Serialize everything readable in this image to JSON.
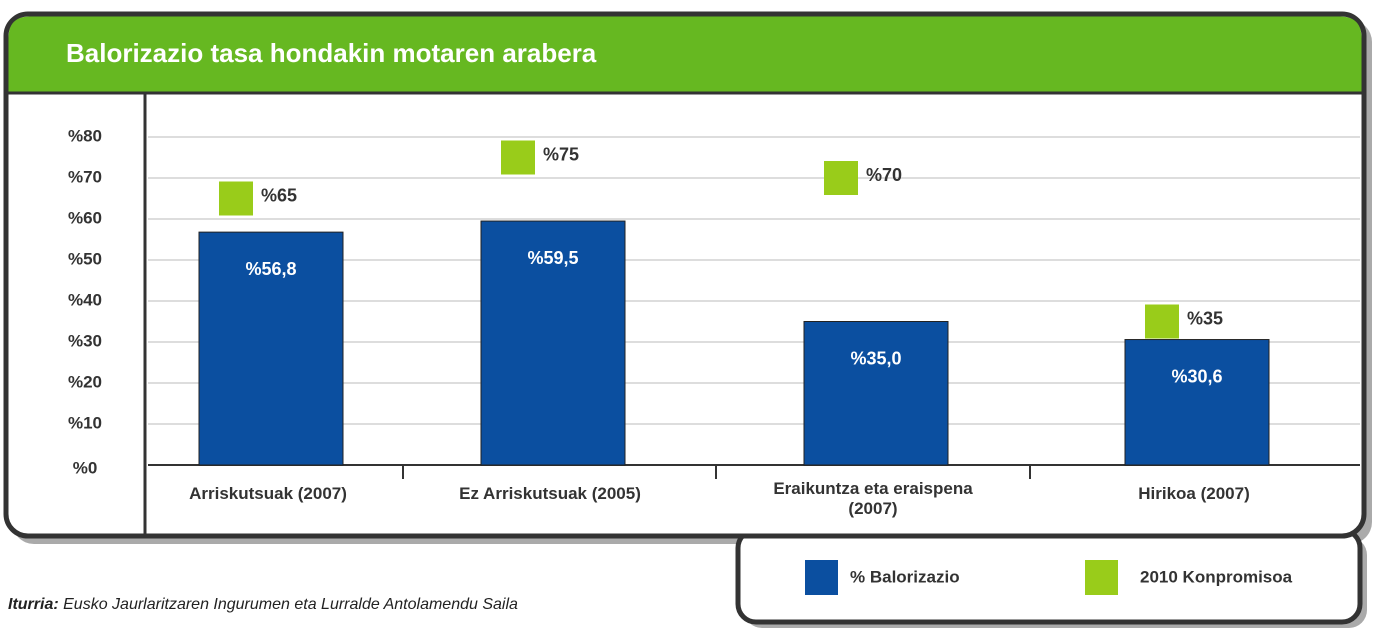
{
  "chart_data": {
    "type": "bar",
    "title": "Balorizazio tasa hondakin motaren arabera",
    "categories": [
      "Arriskutsuak (2007)",
      "Ez Arriskutsuak (2005)",
      "Eraikuntza eta eraispena (2007)",
      "Hirikoa (2007)"
    ],
    "series": [
      {
        "name": "% Balorizazio",
        "color": "#0b4fa0",
        "values": [
          56.8,
          59.5,
          35.0,
          30.6
        ],
        "value_labels": [
          "%56,8",
          "%59,5",
          "%35,0",
          "%30,6"
        ]
      },
      {
        "name": "2010 Konpromisoa",
        "color": "#99cc1a",
        "values": [
          65,
          75,
          70,
          35
        ],
        "value_labels": [
          "%65",
          "%75",
          "%70",
          "%35"
        ]
      }
    ],
    "ylim": [
      0,
      80
    ],
    "yticks": [
      {
        "value": 0,
        "label": "%0"
      },
      {
        "value": 10,
        "label": "%10"
      },
      {
        "value": 20,
        "label": "%20"
      },
      {
        "value": 30,
        "label": "%30"
      },
      {
        "value": 40,
        "label": "%40"
      },
      {
        "value": 50,
        "label": "%50"
      },
      {
        "value": 60,
        "label": "%60"
      },
      {
        "value": 70,
        "label": "%70"
      },
      {
        "value": 80,
        "label": "%80"
      }
    ],
    "grid": true,
    "legend": "bottom-right",
    "source_label": "Iturria:",
    "source_text": "Eusko Jaurlaritzaren Ingurumen eta Lurralde Antolamendu Saila"
  }
}
